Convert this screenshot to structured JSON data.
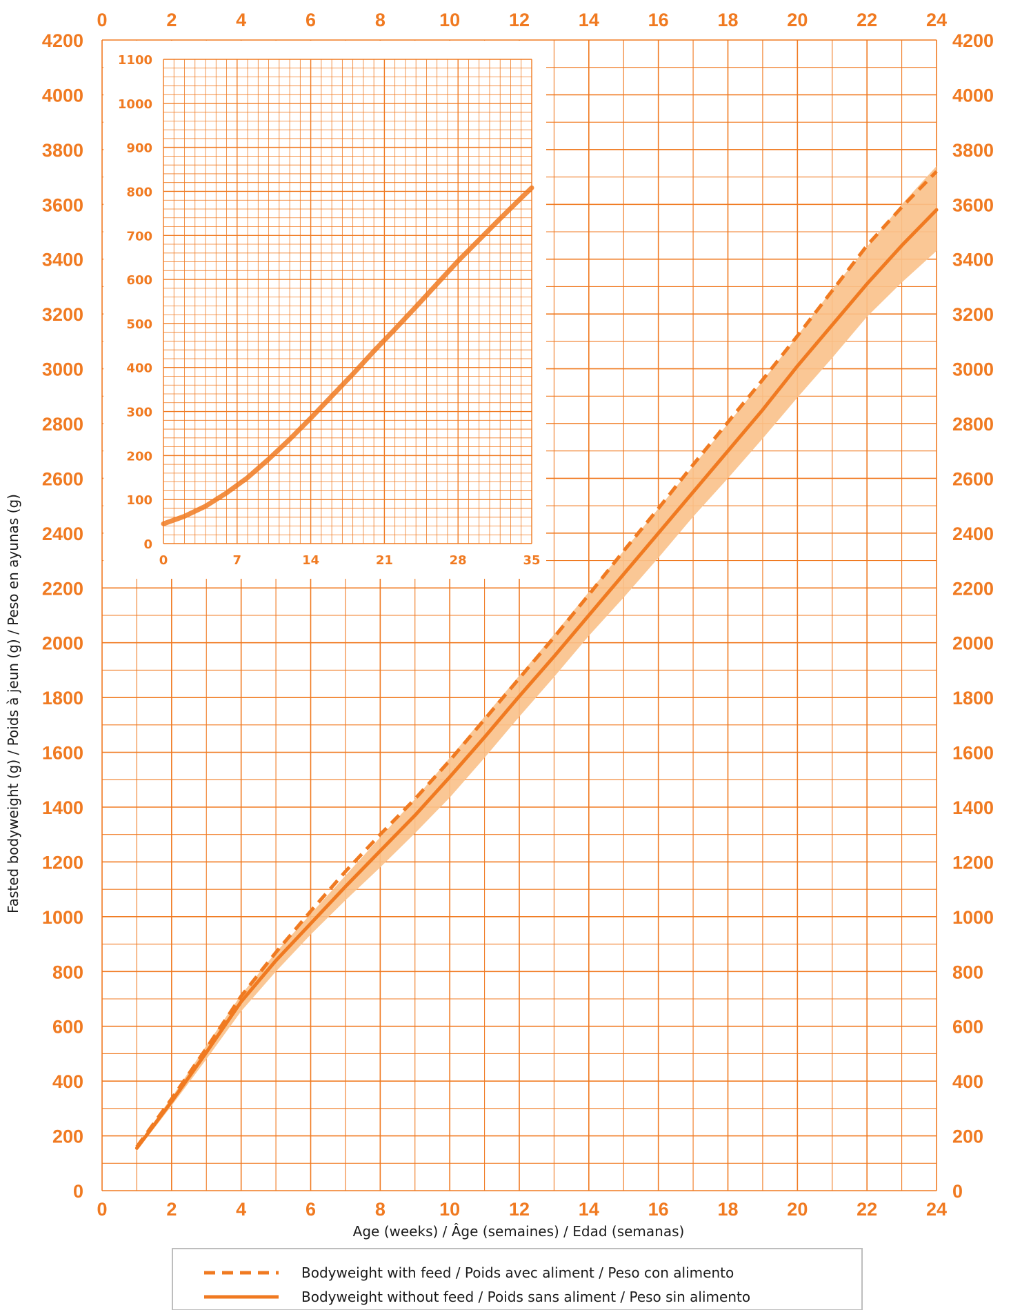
{
  "chart_data": [
    {
      "type": "line",
      "xlabel": "Age (weeks) / Âge (semaines) / Edad (semanas)",
      "ylabel": "Fasted bodyweight (g) / Poids à jeun (g) / Peso en ayunas (g)",
      "xlim": [
        0,
        24
      ],
      "ylim": [
        0,
        4200
      ],
      "x_ticks": [
        0,
        2,
        4,
        6,
        8,
        10,
        12,
        14,
        16,
        18,
        20,
        22,
        24
      ],
      "y_ticks": [
        0,
        200,
        400,
        600,
        800,
        1000,
        1200,
        1400,
        1600,
        1800,
        2000,
        2200,
        2400,
        2600,
        2800,
        3000,
        3200,
        3400,
        3600,
        3800,
        4000,
        4200
      ],
      "grid": true,
      "legend_position": "bottom",
      "series": [
        {
          "name": "Bodyweight with feed / Poids avec aliment / Peso con alimento",
          "style": "dashed",
          "color": "#F07A21",
          "x": [
            1,
            2,
            3,
            4,
            5,
            6,
            7,
            8,
            9,
            10,
            11,
            12,
            13,
            14,
            15,
            16,
            17,
            18,
            19,
            20,
            21,
            22,
            23,
            24
          ],
          "y": [
            160,
            335,
            520,
            710,
            870,
            1020,
            1165,
            1300,
            1430,
            1570,
            1720,
            1870,
            2020,
            2175,
            2335,
            2490,
            2650,
            2805,
            2960,
            3120,
            3285,
            3450,
            3590,
            3720
          ]
        },
        {
          "name": "Bodyweight without feed / Poids sans aliment / Peso sin alimento",
          "style": "solid",
          "color": "#F07A21",
          "x": [
            1,
            2,
            3,
            4,
            5,
            6,
            7,
            8,
            9,
            10,
            11,
            12,
            13,
            14,
            15,
            16,
            17,
            18,
            19,
            20,
            21,
            22,
            23,
            24
          ],
          "y": [
            155,
            325,
            505,
            690,
            840,
            975,
            1110,
            1240,
            1370,
            1510,
            1655,
            1805,
            1950,
            2100,
            2250,
            2400,
            2550,
            2700,
            2850,
            3010,
            3160,
            3310,
            3450,
            3580
          ],
          "band_low": [
            145,
            310,
            480,
            655,
            800,
            935,
            1060,
            1180,
            1305,
            1435,
            1580,
            1730,
            1875,
            2025,
            2165,
            2310,
            2460,
            2600,
            2745,
            2895,
            3040,
            3190,
            3315,
            3430
          ],
          "band_high": [
            165,
            340,
            530,
            715,
            870,
            1010,
            1150,
            1290,
            1430,
            1580,
            1730,
            1880,
            2030,
            2185,
            2335,
            2490,
            2645,
            2800,
            2955,
            3120,
            3290,
            3445,
            3600,
            3740
          ]
        }
      ]
    },
    {
      "type": "line",
      "xlim": [
        0,
        35
      ],
      "ylim": [
        0,
        1100
      ],
      "x_ticks": [
        0,
        7,
        14,
        21,
        28,
        35
      ],
      "y_ticks": [
        0,
        100,
        200,
        300,
        400,
        500,
        600,
        700,
        800,
        900,
        1000,
        1100
      ],
      "grid": true,
      "series": [
        {
          "style": "solid",
          "color": "#F07A21",
          "x": [
            0,
            2,
            4,
            6,
            8,
            10,
            12,
            14,
            16,
            18,
            20,
            22,
            24,
            26,
            28,
            30,
            32,
            34,
            35
          ],
          "y": [
            45,
            62,
            85,
            115,
            150,
            192,
            237,
            285,
            335,
            385,
            437,
            487,
            538,
            590,
            642,
            690,
            738,
            785,
            808
          ]
        }
      ]
    }
  ]
}
